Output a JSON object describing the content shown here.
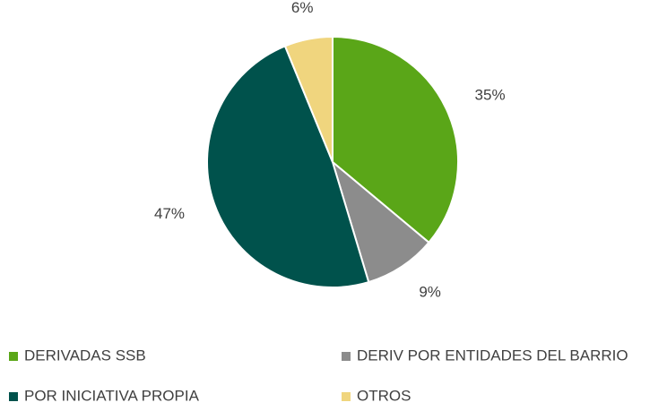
{
  "chart_data": {
    "type": "pie",
    "categories": [
      "DERIVADAS SSB",
      "DERIV POR ENTIDADES DEL BARRIO",
      "POR INICIATIVA PROPIA",
      "OTROS"
    ],
    "values": [
      35,
      9,
      47,
      6
    ],
    "value_labels": [
      "35%",
      "9%",
      "47%",
      "6%"
    ],
    "colors": [
      "#5aa618",
      "#8c8c8c",
      "#00524c",
      "#f0d57e"
    ],
    "legend": "bottom"
  }
}
